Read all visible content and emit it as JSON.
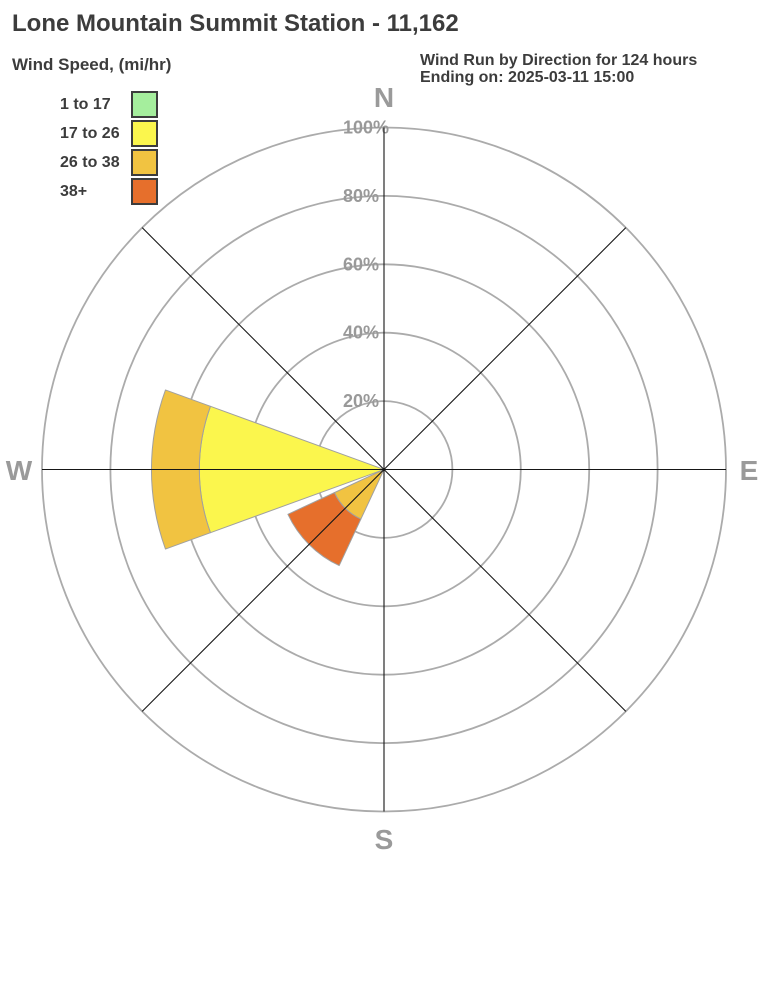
{
  "title": "Lone Mountain Summit Station - 11,162",
  "legend": {
    "heading": "Wind Speed, (mi/hr)",
    "items": [
      {
        "label": "1 to 17",
        "color": "#a5ee9d"
      },
      {
        "label": "17 to 26",
        "color": "#fbf64d"
      },
      {
        "label": "26 to 38",
        "color": "#f1c341"
      },
      {
        "label": "38+",
        "color": "#e66f2c"
      }
    ]
  },
  "subtitle": {
    "line1": "Wind Run by Direction for 124 hours",
    "line2": "Ending on: 2025-03-11 15:00"
  },
  "chart_data": {
    "type": "wind-rose",
    "title": "Wind Run by Direction for 124 hours",
    "units": "percent of wind run",
    "axis_max": 100,
    "ring_percents": [
      20,
      40,
      60,
      80,
      100
    ],
    "ring_labels": [
      "20%",
      "40%",
      "60%",
      "80%",
      "100%"
    ],
    "compass_labels": [
      "N",
      "E",
      "S",
      "W"
    ],
    "directions": [
      "N",
      "NE",
      "E",
      "SE",
      "S",
      "SW",
      "W",
      "NW"
    ],
    "sector_width_deg": 40,
    "series": [
      {
        "name": "1 to 17",
        "color": "#a5ee9d",
        "values": [
          0,
          0,
          0,
          0,
          0,
          0,
          0,
          0
        ]
      },
      {
        "name": "17 to 26",
        "color": "#fbf64d",
        "values": [
          0,
          0,
          0,
          0,
          0,
          0,
          54,
          0
        ]
      },
      {
        "name": "26 to 38",
        "color": "#f1c341",
        "values": [
          0,
          0,
          0,
          0,
          0,
          16,
          14,
          0
        ]
      },
      {
        "name": "38+",
        "color": "#e66f2c",
        "values": [
          0,
          0,
          0,
          0,
          0,
          15,
          0,
          0
        ]
      }
    ],
    "colors": {
      "grid": "#ababab",
      "spoke": "#161616",
      "ring_label": "#999999",
      "compass_label": "#9a9a9a",
      "sector_stroke": "#a0a0a0"
    }
  }
}
